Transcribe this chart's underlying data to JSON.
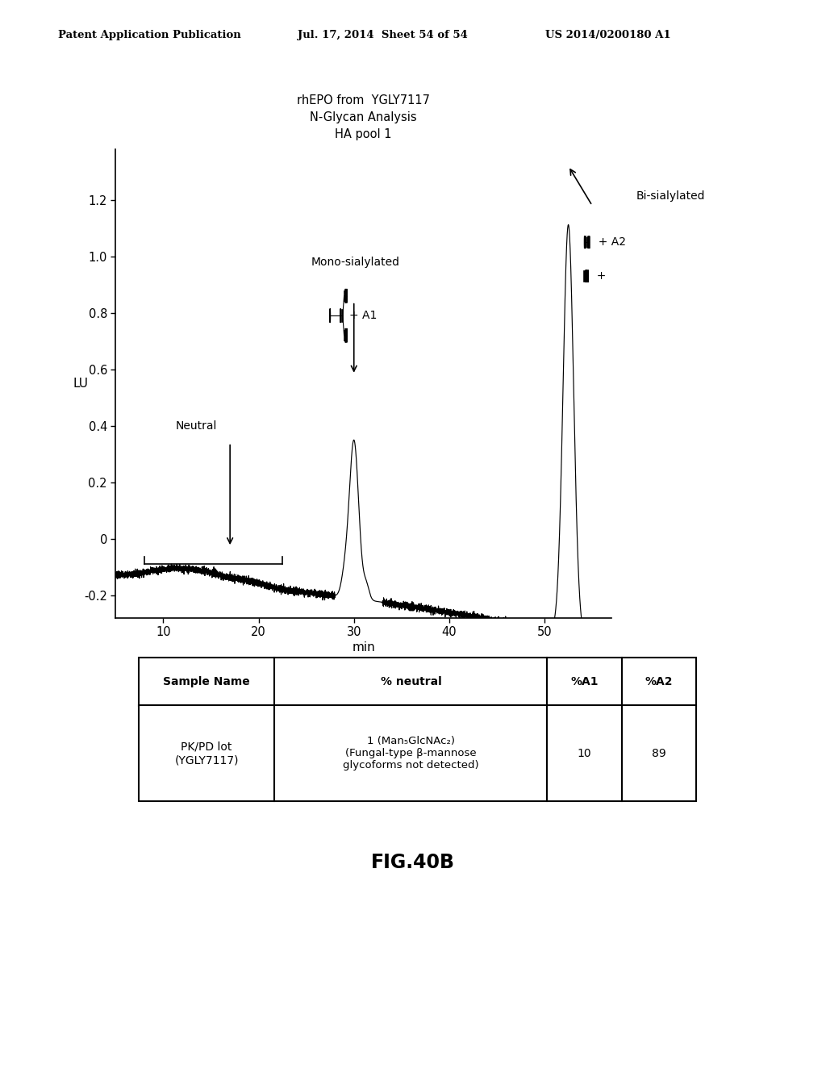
{
  "header_left": "Patent Application Publication",
  "header_mid": "Jul. 17, 2014  Sheet 54 of 54",
  "header_right": "US 2014/0200180 A1",
  "chart_title_line1": "rhEPO from  YGLY7117",
  "chart_title_line2": "N-Glycan Analysis",
  "chart_title_line3": "HA pool 1",
  "xlabel": "min",
  "ylabel": "LU",
  "xmin": 5,
  "xmax": 57,
  "ymin": -0.28,
  "ymax": 1.38,
  "xticks": [
    10,
    20,
    30,
    40,
    50
  ],
  "yticks": [
    -0.2,
    0,
    0.2,
    0.4,
    0.6,
    0.8,
    1.0,
    1.2
  ],
  "fig_label": "FIG.40B",
  "table_headers": [
    "Sample Name",
    "% neutral",
    "%A1",
    "%A2"
  ],
  "neutral_label": "Neutral",
  "mono_label": "Mono-sialylated",
  "bi_label": "Bi-sialylated",
  "background_color": "#ffffff",
  "line_color": "#000000"
}
